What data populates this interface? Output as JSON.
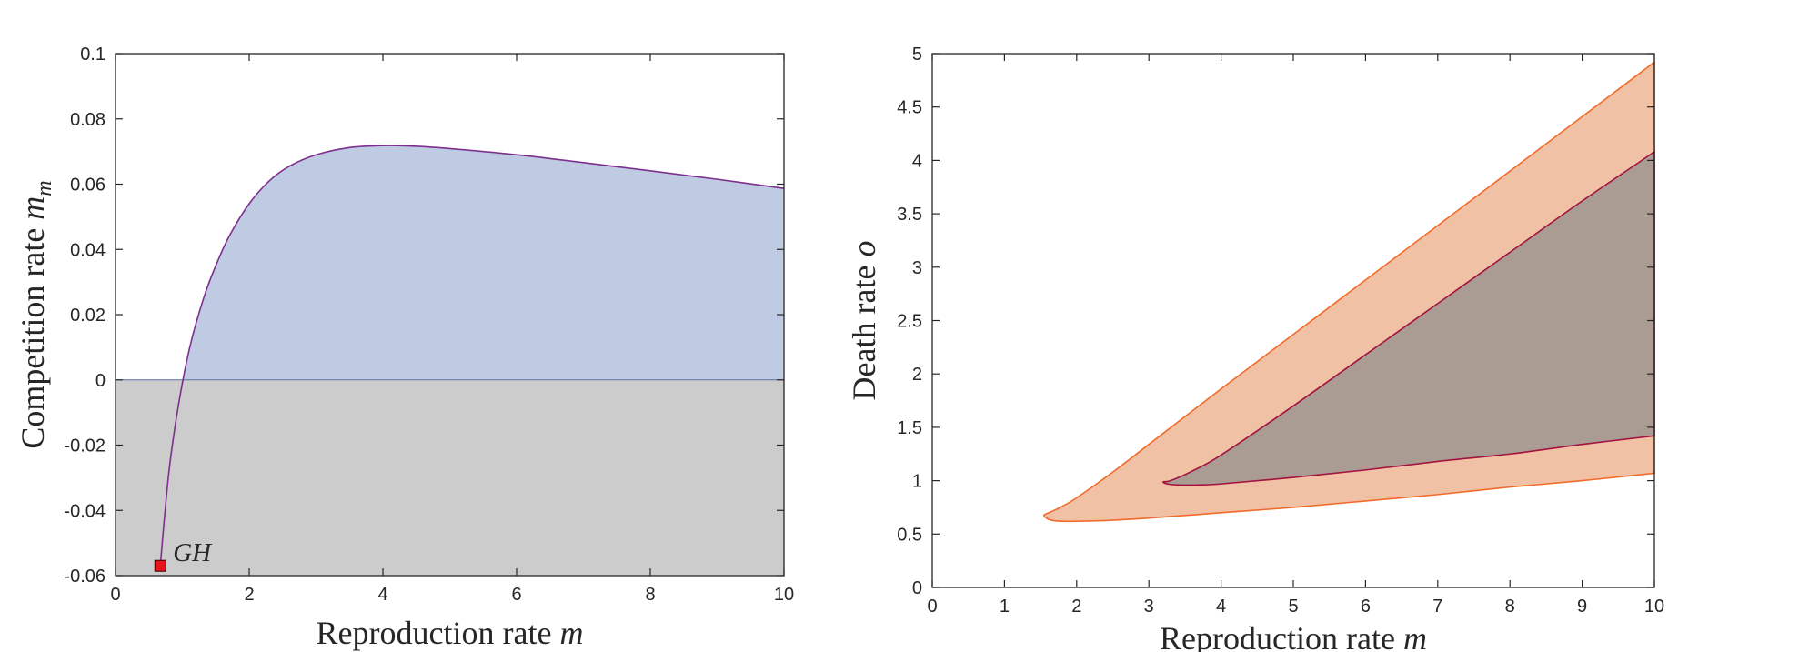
{
  "chart_data": [
    {
      "type": "area",
      "panel": "left",
      "xlabel_text": "Reproduction rate ",
      "xlabel_math": "m",
      "ylabel_text": "Competition rate ",
      "ylabel_math": "m",
      "ylabel_math_sub": "m",
      "xlim": [
        0,
        10
      ],
      "ylim": [
        -0.06,
        0.1
      ],
      "xticks": [
        0,
        2,
        4,
        6,
        8,
        10
      ],
      "xtick_labels": [
        "0",
        "2",
        "4",
        "6",
        "8",
        "10"
      ],
      "yticks": [
        -0.06,
        -0.04,
        -0.02,
        0,
        0.02,
        0.04,
        0.06,
        0.08,
        0.1
      ],
      "ytick_labels": [
        "-0.06",
        "-0.04",
        "-0.02",
        "0",
        "0.02",
        "0.04",
        "0.06",
        "0.08",
        "0.1"
      ],
      "grid": false,
      "series": [
        {
          "name": "boundary curve",
          "color": "#7e2f8e",
          "x": [
            0.67,
            0.72,
            0.8,
            0.9,
            1.0,
            1.1,
            1.2,
            1.35,
            1.5,
            1.7,
            2.0,
            2.3,
            2.6,
            3.0,
            3.5,
            4.0,
            4.5,
            5.0,
            6.0,
            7.0,
            8.0,
            9.0,
            10.0
          ],
          "y": [
            -0.057,
            -0.045,
            -0.028,
            -0.013,
            -0.001,
            0.009,
            0.017,
            0.027,
            0.035,
            0.044,
            0.054,
            0.061,
            0.0655,
            0.069,
            0.0712,
            0.0718,
            0.0716,
            0.0709,
            0.069,
            0.0666,
            0.0641,
            0.0615,
            0.0587
          ]
        }
      ],
      "regions": [
        {
          "name": "region above zero",
          "color": "#bfcbe3"
        },
        {
          "name": "region below zero",
          "color": "#cccccc"
        }
      ],
      "zero_line_color": "#5a6fa8",
      "annotations": [
        {
          "label": "GH",
          "x": 0.67,
          "y": -0.057,
          "marker": "square",
          "color": "#e8141c"
        }
      ]
    },
    {
      "type": "area",
      "panel": "right",
      "xlabel_text": "Reproduction rate ",
      "xlabel_math": "m",
      "ylabel_text": "Death rate ",
      "ylabel_math": "o",
      "xlim": [
        0,
        10
      ],
      "ylim": [
        0,
        5
      ],
      "xticks": [
        0,
        1,
        2,
        3,
        4,
        5,
        6,
        7,
        8,
        9,
        10
      ],
      "xtick_labels": [
        "0",
        "1",
        "2",
        "3",
        "4",
        "5",
        "6",
        "7",
        "8",
        "9",
        "10"
      ],
      "yticks": [
        0,
        0.5,
        1,
        1.5,
        2,
        2.5,
        3,
        3.5,
        4,
        4.5,
        5
      ],
      "ytick_labels": [
        "0",
        "0.5",
        "1",
        "1.5",
        "2",
        "2.5",
        "3",
        "3.5",
        "4",
        "4.5",
        "5"
      ],
      "grid": false,
      "series": [
        {
          "name": "outer region",
          "fill": "#f0c1a4",
          "stroke": "#f26b2a",
          "x": [
            10,
            9,
            8,
            7,
            6,
            5,
            4,
            3,
            2.5,
            2,
            1.8,
            1.65,
            1.55,
            1.58,
            1.65,
            1.8,
            2,
            2.5,
            3,
            4,
            5,
            6,
            7,
            8,
            9,
            10
          ],
          "y": [
            4.92,
            4.41,
            3.9,
            3.39,
            2.88,
            2.37,
            1.86,
            1.34,
            1.08,
            0.84,
            0.76,
            0.71,
            0.68,
            0.65,
            0.63,
            0.62,
            0.62,
            0.63,
            0.65,
            0.7,
            0.75,
            0.81,
            0.87,
            0.94,
            1.0,
            1.07
          ]
        },
        {
          "name": "inner region",
          "fill": "#aa9c93",
          "stroke": "#a3133f",
          "x": [
            10,
            9,
            8,
            7,
            6,
            5,
            4,
            3.6,
            3.3,
            3.2,
            3.25,
            3.4,
            3.7,
            4,
            5,
            6,
            7,
            8,
            9,
            10
          ],
          "y": [
            4.08,
            3.62,
            3.14,
            2.66,
            2.18,
            1.7,
            1.24,
            1.09,
            1.0,
            0.99,
            0.97,
            0.96,
            0.96,
            0.97,
            1.03,
            1.1,
            1.18,
            1.25,
            1.34,
            1.42
          ]
        }
      ]
    }
  ]
}
